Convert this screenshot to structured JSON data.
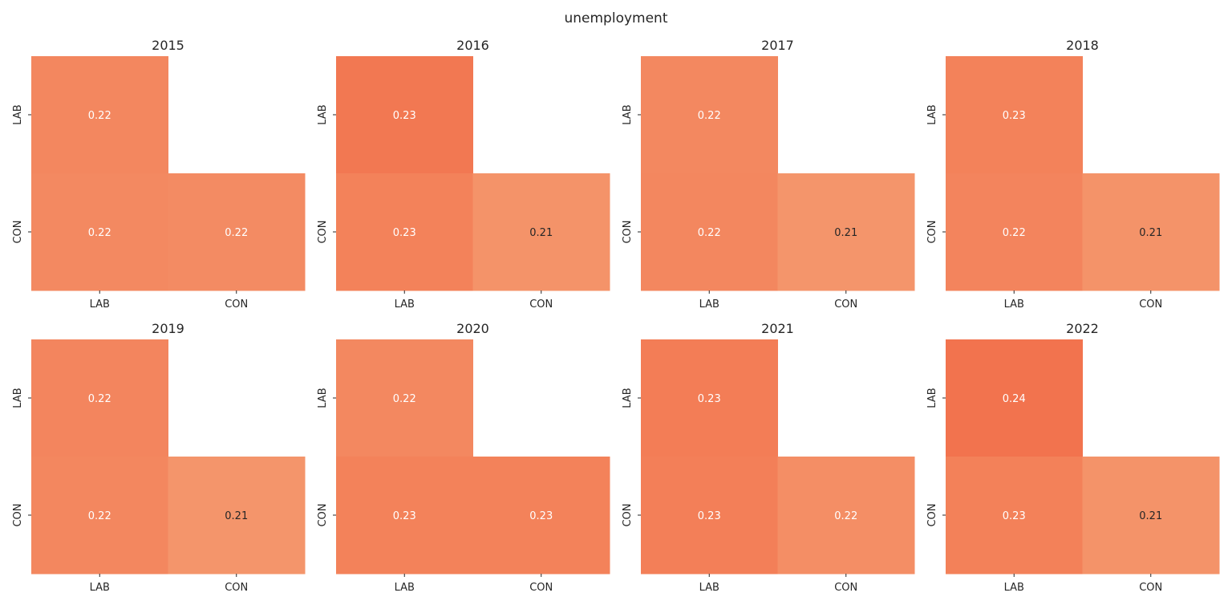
{
  "figure": {
    "title": "unemployment"
  },
  "color_scale": {
    "low_value": 0.21,
    "low_color": "#f4956b",
    "high_value": 0.24,
    "high_color": "#f2714c"
  },
  "text_colors": {
    "light": "#ffffff",
    "dark": "#262626"
  },
  "chart_data": [
    {
      "type": "heatmap",
      "title": "2015",
      "x": [
        "LAB",
        "CON"
      ],
      "y": [
        "LAB",
        "CON"
      ],
      "values": [
        [
          0.22,
          null
        ],
        [
          0.22,
          0.22
        ]
      ],
      "shades": [
        [
          0.222,
          null
        ],
        [
          0.22,
          0.218
        ]
      ]
    },
    {
      "type": "heatmap",
      "title": "2016",
      "x": [
        "LAB",
        "CON"
      ],
      "y": [
        "LAB",
        "CON"
      ],
      "values": [
        [
          0.23,
          null
        ],
        [
          0.23,
          0.21
        ]
      ],
      "shades": [
        [
          0.234,
          null
        ],
        [
          0.226,
          0.212
        ]
      ]
    },
    {
      "type": "heatmap",
      "title": "2017",
      "x": [
        "LAB",
        "CON"
      ],
      "y": [
        "LAB",
        "CON"
      ],
      "values": [
        [
          0.22,
          null
        ],
        [
          0.22,
          0.21
        ]
      ],
      "shades": [
        [
          0.221,
          null
        ],
        [
          0.222,
          0.209
        ]
      ]
    },
    {
      "type": "heatmap",
      "title": "2018",
      "x": [
        "LAB",
        "CON"
      ],
      "y": [
        "LAB",
        "CON"
      ],
      "values": [
        [
          0.23,
          null
        ],
        [
          0.22,
          0.21
        ]
      ],
      "shades": [
        [
          0.226,
          null
        ],
        [
          0.224,
          0.212
        ]
      ]
    },
    {
      "type": "heatmap",
      "title": "2019",
      "x": [
        "LAB",
        "CON"
      ],
      "y": [
        "LAB",
        "CON"
      ],
      "values": [
        [
          0.22,
          null
        ],
        [
          0.22,
          0.21
        ]
      ],
      "shades": [
        [
          0.223,
          null
        ],
        [
          0.222,
          0.21
        ]
      ]
    },
    {
      "type": "heatmap",
      "title": "2020",
      "x": [
        "LAB",
        "CON"
      ],
      "y": [
        "LAB",
        "CON"
      ],
      "values": [
        [
          0.22,
          null
        ],
        [
          0.23,
          0.23
        ]
      ],
      "shades": [
        [
          0.221,
          null
        ],
        [
          0.226,
          0.226
        ]
      ]
    },
    {
      "type": "heatmap",
      "title": "2021",
      "x": [
        "LAB",
        "CON"
      ],
      "y": [
        "LAB",
        "CON"
      ],
      "values": [
        [
          0.23,
          null
        ],
        [
          0.23,
          0.22
        ]
      ],
      "shades": [
        [
          0.23,
          null
        ],
        [
          0.228,
          0.216
        ]
      ]
    },
    {
      "type": "heatmap",
      "title": "2022",
      "x": [
        "LAB",
        "CON"
      ],
      "y": [
        "LAB",
        "CON"
      ],
      "values": [
        [
          0.24,
          null
        ],
        [
          0.23,
          0.21
        ]
      ],
      "shades": [
        [
          0.238,
          null
        ],
        [
          0.227,
          0.212
        ]
      ]
    }
  ]
}
